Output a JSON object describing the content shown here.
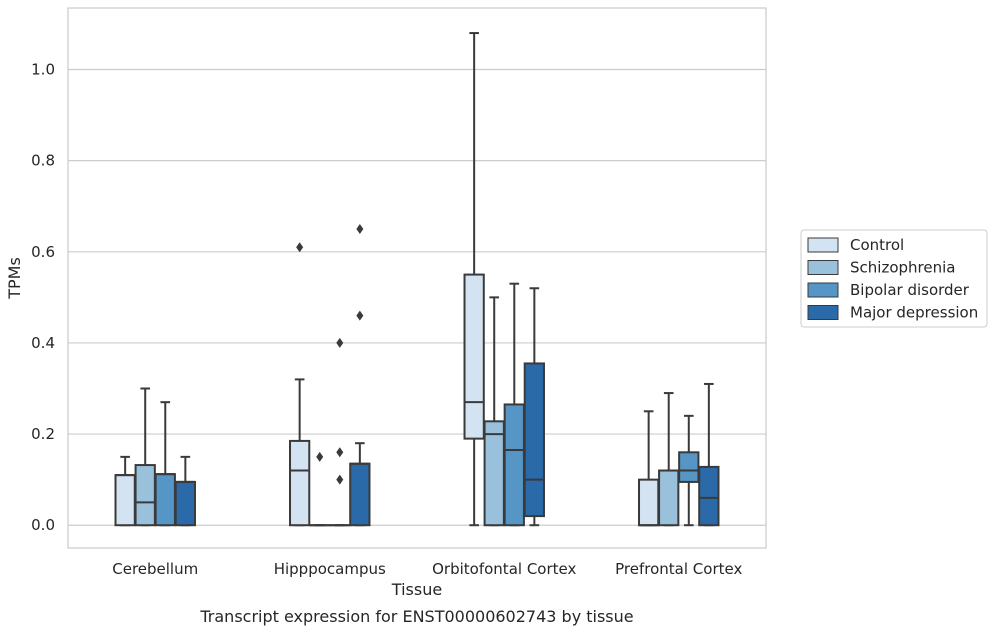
{
  "chart_data": {
    "type": "box",
    "xlabel": "Tissue",
    "ylabel": "TPMs",
    "caption": "Transcript expression for ENST00000602743 by tissue",
    "ylim": [
      -0.05,
      1.135
    ],
    "yticks": [
      "0.0",
      "0.2",
      "0.4",
      "0.6",
      "0.8",
      "1.0"
    ],
    "ytick_values": [
      0.0,
      0.2,
      0.4,
      0.6,
      0.8,
      1.0
    ],
    "grid": true,
    "legend_position": "right",
    "categories": [
      "Cerebellum",
      "Hipppocampus",
      "Orbitofontal Cortex",
      "Prefrontal Cortex"
    ],
    "series": [
      {
        "name": "Control",
        "color": "#d4e3f1",
        "boxes": [
          {
            "min": 0.0,
            "q1": 0.0,
            "median": 0.11,
            "q3": 0.11,
            "max": 0.15,
            "outliers": []
          },
          {
            "min": 0.0,
            "q1": 0.0,
            "median": 0.12,
            "q3": 0.185,
            "max": 0.32,
            "outliers": [
              0.61
            ]
          },
          {
            "min": 0.0,
            "q1": 0.19,
            "median": 0.27,
            "q3": 0.55,
            "max": 1.08,
            "outliers": []
          },
          {
            "min": 0.0,
            "q1": 0.0,
            "median": 0.0,
            "q3": 0.1,
            "max": 0.25,
            "outliers": []
          }
        ]
      },
      {
        "name": "Schizophrenia",
        "color": "#9ac1dc",
        "boxes": [
          {
            "min": 0.0,
            "q1": 0.0,
            "median": 0.05,
            "q3": 0.132,
            "max": 0.3,
            "outliers": []
          },
          {
            "min": 0.0,
            "q1": 0.0,
            "median": 0.0,
            "q3": 0.0,
            "max": 0.0,
            "outliers": [
              0.15
            ]
          },
          {
            "min": 0.0,
            "q1": 0.0,
            "median": 0.2,
            "q3": 0.228,
            "max": 0.5,
            "outliers": []
          },
          {
            "min": 0.0,
            "q1": 0.0,
            "median": 0.12,
            "q3": 0.12,
            "max": 0.29,
            "outliers": []
          }
        ]
      },
      {
        "name": "Bipolar disorder",
        "color": "#5596c6",
        "boxes": [
          {
            "min": 0.0,
            "q1": 0.0,
            "median": 0.112,
            "q3": 0.112,
            "max": 0.27,
            "outliers": []
          },
          {
            "min": 0.0,
            "q1": 0.0,
            "median": 0.0,
            "q3": 0.0,
            "max": 0.0,
            "outliers": [
              0.1,
              0.16,
              0.4
            ]
          },
          {
            "min": 0.0,
            "q1": 0.0,
            "median": 0.165,
            "q3": 0.265,
            "max": 0.53,
            "outliers": []
          },
          {
            "min": 0.0,
            "q1": 0.095,
            "median": 0.12,
            "q3": 0.16,
            "max": 0.24,
            "outliers": []
          }
        ]
      },
      {
        "name": "Major depression",
        "color": "#2a6aa8",
        "boxes": [
          {
            "min": 0.0,
            "q1": 0.0,
            "median": 0.095,
            "q3": 0.095,
            "max": 0.15,
            "outliers": []
          },
          {
            "min": 0.0,
            "q1": 0.0,
            "median": 0.135,
            "q3": 0.135,
            "max": 0.18,
            "outliers": [
              0.46,
              0.65
            ]
          },
          {
            "min": 0.0,
            "q1": 0.02,
            "median": 0.1,
            "q3": 0.355,
            "max": 0.52,
            "outliers": []
          },
          {
            "min": 0.0,
            "q1": 0.0,
            "median": 0.06,
            "q3": 0.128,
            "max": 0.31,
            "outliers": []
          }
        ]
      }
    ]
  }
}
